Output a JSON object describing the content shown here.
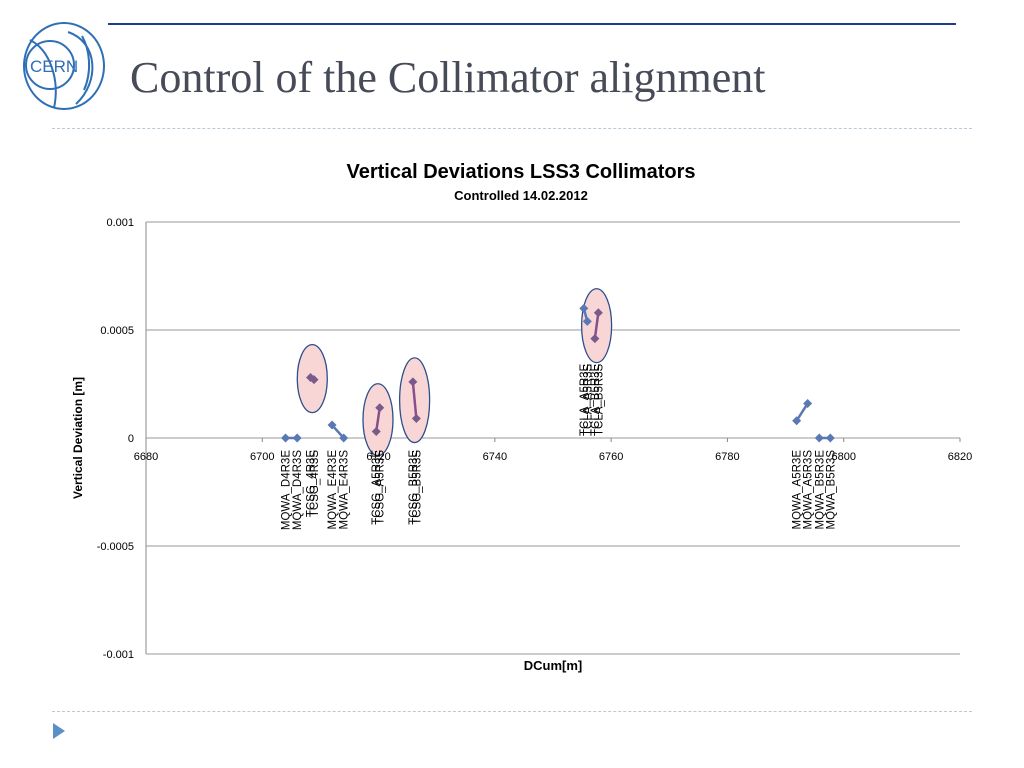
{
  "slide": {
    "title": "Control of the Collimator alignment",
    "logo_text": "CERN",
    "colors": {
      "title": "#474a57",
      "rule": "#1f3d8a",
      "dash": "#b9c9d8",
      "nav_arrow": "#5b8fc7"
    },
    "nav_icon": "play-triangle-icon"
  },
  "chart_data": {
    "type": "scatter",
    "title": "Vertical Deviations LSS3 Collimators",
    "subtitle": "Controlled 14.02.2012",
    "xlabel": "DCum[m]",
    "ylabel": "Vertical Deviation [m]",
    "xlim": [
      6680,
      6820
    ],
    "ylim": [
      -0.001,
      0.001
    ],
    "x_ticks": [
      "6680",
      "6700",
      "6720",
      "6740",
      "6760",
      "6780",
      "6800",
      "6820"
    ],
    "y_ticks": [
      "0.001",
      "0.0005",
      "0",
      "-0.0005",
      "-0.001"
    ],
    "y_tick_values": [
      0.001,
      0.0005,
      0,
      -0.0005,
      -0.001
    ],
    "grid": true,
    "marker_color": "#5a78b4",
    "highlight_color": "#f9d6d6",
    "highlight_outline": "#2e4e8c",
    "points": [
      {
        "x": 6704.0,
        "y": 0.0,
        "label": "MQWA_D4R3E",
        "label_side": "below"
      },
      {
        "x": 6706.0,
        "y": 0.0,
        "label": "MQWA_D4R3S",
        "label_side": "below"
      },
      {
        "x": 6708.3,
        "y": 0.00028,
        "label": "TCSG_4R3E",
        "label_side": "below",
        "highlight": true
      },
      {
        "x": 6708.9,
        "y": 0.00027,
        "label": "TCSG_4R3S",
        "label_side": "below",
        "highlight": true
      },
      {
        "x": 6712.0,
        "y": 6e-05,
        "label": "MQWA_E4R3E",
        "label_side": "below"
      },
      {
        "x": 6714.0,
        "y": 0.0,
        "label": "MQWA_E4R3S",
        "label_side": "below"
      },
      {
        "x": 6719.6,
        "y": 3e-05,
        "label": "TCSG_A5R3E",
        "label_side": "below",
        "highlight": true
      },
      {
        "x": 6720.2,
        "y": 0.00014,
        "label": "TCSG_A5R3S",
        "label_side": "below",
        "highlight": true
      },
      {
        "x": 6725.9,
        "y": 0.00026,
        "label": "TCSG_B5R3E",
        "label_side": "below",
        "highlight": true
      },
      {
        "x": 6726.5,
        "y": 9e-05,
        "label": "TCSG_B5R3S",
        "label_side": "below",
        "highlight": true
      },
      {
        "x": 6755.3,
        "y": 0.0006,
        "label": "TCLA_A5R3E",
        "label_side": "above"
      },
      {
        "x": 6755.9,
        "y": 0.00054,
        "label": "TCLA_A5R3S",
        "label_side": "above"
      },
      {
        "x": 6757.2,
        "y": 0.00046,
        "label": "TCLA_B5R3E",
        "label_side": "above",
        "highlight": true
      },
      {
        "x": 6757.8,
        "y": 0.00058,
        "label": "TCLA_B5R3S",
        "label_side": "above",
        "highlight": true
      },
      {
        "x": 6791.9,
        "y": 8e-05,
        "label": "MQWA_A5R3E",
        "label_side": "below"
      },
      {
        "x": 6793.8,
        "y": 0.00016,
        "label": "MQWA_A5R3S",
        "label_side": "below"
      },
      {
        "x": 6795.8,
        "y": 0.0,
        "label": "MQWA_B5R3E",
        "label_side": "below"
      },
      {
        "x": 6797.7,
        "y": 0.0,
        "label": "MQWA_B5R3S",
        "label_side": "below"
      }
    ],
    "segments": [
      [
        0,
        1
      ],
      [
        2,
        3
      ],
      [
        4,
        5
      ],
      [
        6,
        7
      ],
      [
        8,
        9
      ],
      [
        10,
        11
      ],
      [
        12,
        13
      ],
      [
        14,
        15
      ],
      [
        16,
        17
      ]
    ],
    "highlights": [
      [
        2,
        3
      ],
      [
        6,
        7
      ],
      [
        8,
        9
      ],
      [
        12,
        13
      ]
    ]
  }
}
